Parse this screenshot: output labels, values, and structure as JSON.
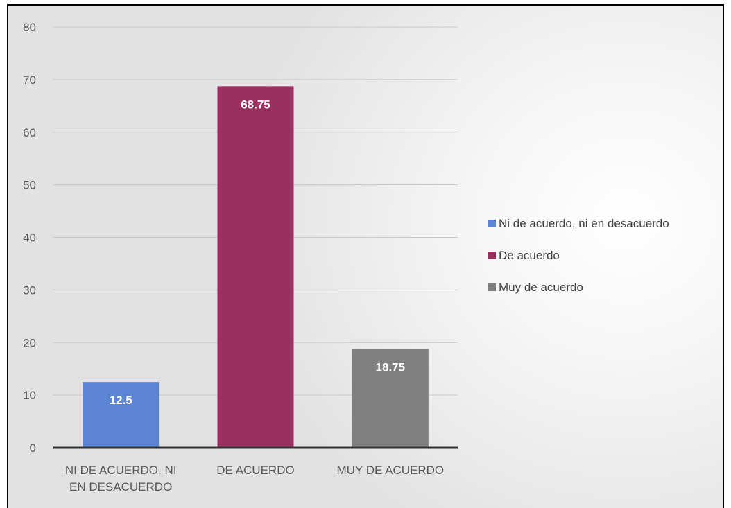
{
  "chart_data": {
    "type": "bar",
    "categories": [
      [
        "NI DE ACUERDO, NI",
        "EN DESACUERDO"
      ],
      [
        "DE ACUERDO"
      ],
      [
        "MUY DE ACUERDO"
      ]
    ],
    "values": [
      12.5,
      68.75,
      18.75
    ],
    "data_labels": [
      "12.5",
      "68.75",
      "18.75"
    ],
    "colors": [
      "#5b84d3",
      "#993160",
      "#808080"
    ],
    "ylim": [
      0,
      80
    ],
    "yticks": [
      "0",
      "10",
      "20",
      "30",
      "40",
      "50",
      "60",
      "70",
      "80"
    ],
    "grid": true,
    "legend": {
      "placement": "right",
      "entries": [
        {
          "label": "Ni de acuerdo, ni en desacuerdo",
          "color": "#5b84d3"
        },
        {
          "label": "De acuerdo",
          "color": "#993160"
        },
        {
          "label": "Muy de acuerdo",
          "color": "#808080"
        }
      ]
    }
  }
}
